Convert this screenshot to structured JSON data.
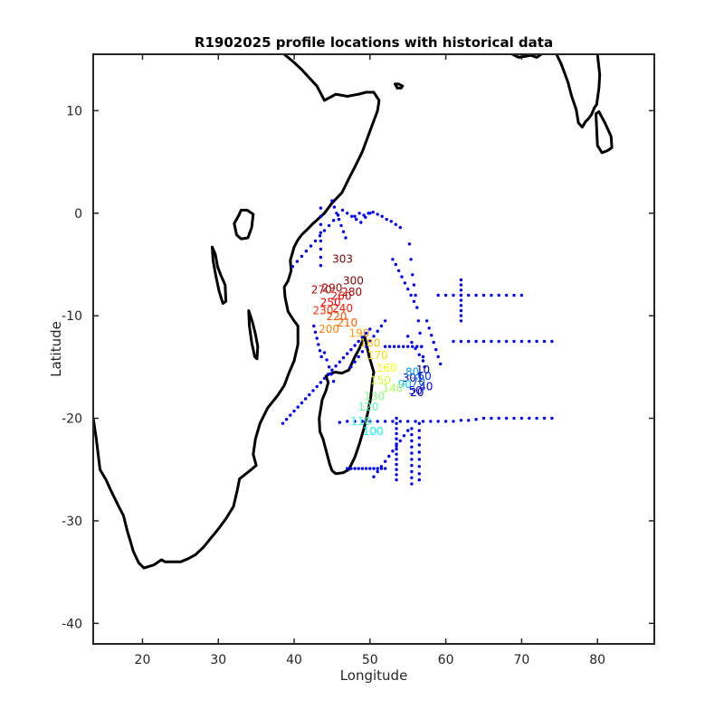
{
  "chart_data": {
    "type": "scatter",
    "title": "R1902025 profile locations with historical data",
    "xlabel": "Longitude",
    "ylabel": "Latitude",
    "xlim": [
      13.5,
      87.5
    ],
    "ylim": [
      -42,
      15.5
    ],
    "xticks": [
      20,
      30,
      40,
      50,
      60,
      70,
      80
    ],
    "yticks": [
      10,
      0,
      -10,
      -20,
      -30,
      -40
    ],
    "grid": false,
    "colormap": [
      "#00008f",
      "#0000ff",
      "#0080ff",
      "#00ffff",
      "#80ff80",
      "#ffff00",
      "#ff8000",
      "#ff0000",
      "#800000"
    ],
    "historical_color": "#0000ff",
    "coastline_color": "#000000",
    "historical_tracks": [
      {
        "x": [
          38.5,
          39.0,
          39.5,
          40.0,
          40.5,
          41.0,
          41.5,
          42.0,
          42.5,
          43.0,
          43.5,
          44.0,
          44.5,
          45.0,
          45.5,
          46.0,
          46.5,
          47.0,
          47.5,
          48.0,
          48.5,
          49.0,
          49.5,
          50.0
        ],
        "y": [
          -20.5,
          -20.1,
          -19.7,
          -19.3,
          -18.9,
          -18.5,
          -18.1,
          -17.7,
          -17.3,
          -16.9,
          -16.5,
          -16.1,
          -15.7,
          -15.3,
          -14.9,
          -14.5,
          -14.1,
          -13.7,
          -13.3,
          -12.9,
          -12.5,
          -12.1,
          -11.7,
          -11.3
        ]
      },
      {
        "x": [
          39.8,
          40.4,
          41.0,
          41.6,
          42.2,
          42.8,
          43.4,
          44.0,
          44.6,
          45.2,
          45.8,
          46.4,
          47.0,
          47.6,
          48.2,
          48.8,
          49.4,
          50.0
        ],
        "y": [
          -5.2,
          -4.7,
          -4.2,
          -3.7,
          -3.2,
          -2.7,
          -2.2,
          -1.7,
          -1.2,
          -0.7,
          -0.2,
          0.3,
          0.0,
          -0.3,
          -0.6,
          -0.9,
          -0.4,
          0.0
        ]
      },
      {
        "x": [
          48.0,
          48.6,
          49.2,
          49.8,
          50.4,
          51.0,
          51.6,
          52.2,
          52.8,
          53.4,
          54.0
        ],
        "y": [
          -0.3,
          0.0,
          -0.2,
          0.0,
          0.1,
          -0.1,
          -0.3,
          -0.6,
          -0.8,
          -1.1,
          -1.4
        ]
      },
      {
        "x": [
          55.2,
          55.4,
          55.6,
          55.8,
          56.0,
          56.2,
          56.4,
          56.6,
          56.8,
          57.0,
          57.2
        ],
        "y": [
          -3.0,
          -4.5,
          -6.0,
          -7.0,
          -8.0,
          -9.2,
          -10.5,
          -11.7,
          -13.0,
          -14.0,
          -15.0
        ]
      },
      {
        "x": [
          53.0,
          53.4,
          53.8,
          54.2,
          54.6,
          55.0,
          55.4,
          55.8
        ],
        "y": [
          -4.5,
          -5.0,
          -5.6,
          -6.2,
          -6.8,
          -7.4,
          -8.0,
          -8.6
        ]
      },
      {
        "x": [
          46.0,
          47.0,
          48.0,
          49.0,
          50.0,
          51.0,
          52.0,
          53.0,
          54.0,
          55.0,
          56.0,
          57.0,
          58.0,
          59.0,
          60.0,
          61.0,
          62.0,
          63.0,
          64.0,
          65.0,
          66.0,
          67.0,
          68.0,
          69.0,
          70.0,
          71.0,
          72.0,
          73.0,
          74.0
        ],
        "y": [
          -20.4,
          -20.3,
          -20.3,
          -20.3,
          -20.3,
          -20.3,
          -20.3,
          -20.3,
          -20.3,
          -20.3,
          -20.3,
          -20.3,
          -20.3,
          -20.3,
          -20.3,
          -20.3,
          -20.2,
          -20.2,
          -20.1,
          -20.0,
          -20.0,
          -20.0,
          -20.0,
          -20.0,
          -20.0,
          -20.0,
          -20.0,
          -20.0,
          -20.0
        ]
      },
      {
        "x": [
          59.0,
          60.0,
          61.0,
          62.0,
          63.0,
          64.0,
          65.0,
          66.0,
          67.0,
          68.0,
          69.0,
          70.0
        ],
        "y": [
          -8.0,
          -8.0,
          -8.0,
          -8.0,
          -8.0,
          -8.0,
          -8.0,
          -8.0,
          -8.0,
          -8.0,
          -8.0,
          -8.0
        ]
      },
      {
        "x": [
          62.0,
          62.0,
          62.0,
          62.0,
          62.0,
          62.0,
          62.0,
          62.0,
          62.0
        ],
        "y": [
          -6.5,
          -7.0,
          -7.5,
          -8.0,
          -8.5,
          -9.0,
          -9.5,
          -10.0,
          -10.5
        ]
      },
      {
        "x": [
          61.0,
          62.0,
          63.0,
          64.0,
          65.0,
          66.0,
          67.0,
          68.0,
          69.0,
          70.0,
          71.0,
          72.0,
          73.0,
          74.0
        ],
        "y": [
          -12.5,
          -12.5,
          -12.5,
          -12.5,
          -12.5,
          -12.5,
          -12.5,
          -12.5,
          -12.5,
          -12.5,
          -12.5,
          -12.5,
          -12.5,
          -12.5
        ]
      },
      {
        "x": [
          57.5,
          57.8,
          58.1,
          58.4,
          58.7,
          59.0,
          59.3
        ],
        "y": [
          -10.5,
          -11.2,
          -11.9,
          -12.6,
          -13.3,
          -14.0,
          -14.7
        ]
      },
      {
        "x": [
          47.0,
          47.5,
          48.0,
          48.5,
          49.0,
          49.5,
          50.0,
          50.5,
          51.0,
          51.5,
          52.0
        ],
        "y": [
          -24.9,
          -24.9,
          -24.9,
          -24.9,
          -24.9,
          -24.9,
          -24.9,
          -24.9,
          -24.9,
          -24.9,
          -24.9
        ]
      },
      {
        "x": [
          53.5,
          53.5,
          53.5,
          53.5,
          53.5,
          53.5,
          53.5,
          53.5,
          53.5,
          53.5,
          53.5,
          53.5,
          53.5
        ],
        "y": [
          -20.0,
          -20.5,
          -21.0,
          -21.5,
          -22.0,
          -22.5,
          -23.0,
          -23.5,
          -24.0,
          -24.5,
          -25.0,
          -25.5,
          -26.0
        ]
      },
      {
        "x": [
          55.5,
          55.5,
          55.5,
          55.5,
          55.5,
          55.5,
          55.5,
          55.5,
          55.5,
          55.5
        ],
        "y": [
          -21.0,
          -21.6,
          -22.2,
          -22.8,
          -23.4,
          -24.0,
          -24.6,
          -25.2,
          -25.8,
          -26.4
        ]
      },
      {
        "x": [
          56.5,
          56.5,
          56.5,
          56.5,
          56.5,
          56.5,
          56.5,
          56.5,
          56.5
        ],
        "y": [
          -20.5,
          -21.2,
          -21.9,
          -22.6,
          -23.3,
          -24.0,
          -24.7,
          -25.4,
          -26.0
        ]
      },
      {
        "x": [
          50.5,
          51.0,
          51.5,
          52.0,
          52.5,
          53.0,
          53.5,
          54.0,
          54.5,
          55.0
        ],
        "y": [
          -25.7,
          -25.2,
          -24.7,
          -24.2,
          -23.7,
          -23.2,
          -22.7,
          -22.2,
          -21.7,
          -21.2
        ]
      },
      {
        "x": [
          52.0,
          52.6,
          53.2,
          53.8,
          54.4,
          55.0,
          55.6,
          56.2,
          56.8
        ],
        "y": [
          -13.0,
          -13.0,
          -13.0,
          -13.0,
          -13.0,
          -13.0,
          -13.0,
          -13.0,
          -13.0
        ]
      },
      {
        "x": [
          55.0,
          55.5,
          56.0,
          56.5,
          57.0
        ],
        "y": [
          -12.0,
          -12.6,
          -13.2,
          -13.8,
          -14.4
        ]
      },
      {
        "x": [
          43.5,
          43.5,
          43.5,
          43.5,
          43.5,
          43.5,
          43.5,
          43.5
        ],
        "y": [
          0.5,
          -0.3,
          -1.1,
          -1.9,
          -2.7,
          -3.5,
          -4.3,
          -5.1
        ]
      },
      {
        "x": [
          45.0,
          45.3,
          45.6,
          45.9,
          46.2,
          46.5,
          46.8
        ],
        "y": [
          1.2,
          0.6,
          0.0,
          -0.6,
          -1.2,
          -1.8,
          -2.4
        ]
      },
      {
        "x": [
          44.0,
          44.3,
          44.6,
          44.9,
          45.2
        ],
        "y": [
          -13.6,
          -14.3,
          -15.0,
          -15.7,
          -16.4
        ]
      },
      {
        "x": [
          42.6,
          42.8,
          43.0,
          43.2,
          43.4,
          43.6
        ],
        "y": [
          -11.0,
          -11.6,
          -12.2,
          -12.8,
          -13.4,
          -14.0
        ]
      },
      {
        "x": [
          47.5,
          48.0,
          48.5,
          49.0,
          49.5,
          50.0,
          50.5,
          51.0,
          51.5,
          52.0
        ],
        "y": [
          -15.0,
          -14.5,
          -14.0,
          -13.5,
          -13.0,
          -12.5,
          -12.0,
          -11.5,
          -11.0,
          -10.5
        ]
      }
    ],
    "profiles": [
      {
        "label": "303",
        "x": 46.4,
        "y": -4.4,
        "v": 1.0
      },
      {
        "label": "300",
        "x": 47.8,
        "y": -6.5,
        "v": 0.99
      },
      {
        "label": "290",
        "x": 45.0,
        "y": -7.2,
        "v": 0.97
      },
      {
        "label": "280",
        "x": 47.6,
        "y": -7.6,
        "v": 0.95
      },
      {
        "label": "270",
        "x": 43.6,
        "y": -7.4,
        "v": 0.93
      },
      {
        "label": "260",
        "x": 46.2,
        "y": -8.0,
        "v": 0.9
      },
      {
        "label": "250",
        "x": 44.8,
        "y": -8.6,
        "v": 0.88
      },
      {
        "label": "240",
        "x": 46.4,
        "y": -9.2,
        "v": 0.85
      },
      {
        "label": "230",
        "x": 43.8,
        "y": -9.4,
        "v": 0.83
      },
      {
        "label": "220",
        "x": 45.6,
        "y": -10.0,
        "v": 0.8
      },
      {
        "label": "210",
        "x": 47.0,
        "y": -10.6,
        "v": 0.78
      },
      {
        "label": "200",
        "x": 44.6,
        "y": -11.2,
        "v": 0.75
      },
      {
        "label": "190",
        "x": 48.6,
        "y": -11.6,
        "v": 0.72
      },
      {
        "label": "180",
        "x": 50.0,
        "y": -12.6,
        "v": 0.69
      },
      {
        "label": "170",
        "x": 51.0,
        "y": -13.8,
        "v": 0.66
      },
      {
        "label": "160",
        "x": 52.2,
        "y": -15.0,
        "v": 0.62
      },
      {
        "label": "150",
        "x": 51.4,
        "y": -16.2,
        "v": 0.58
      },
      {
        "label": "140",
        "x": 53.0,
        "y": -17.0,
        "v": 0.54
      },
      {
        "label": "130",
        "x": 50.6,
        "y": -17.8,
        "v": 0.5
      },
      {
        "label": "120",
        "x": 49.8,
        "y": -18.8,
        "v": 0.46
      },
      {
        "label": "110",
        "x": 48.8,
        "y": -20.2,
        "v": 0.42
      },
      {
        "label": "100",
        "x": 50.4,
        "y": -21.2,
        "v": 0.38
      },
      {
        "label": "90",
        "x": 54.6,
        "y": -16.6,
        "v": 0.32
      },
      {
        "label": "80",
        "x": 55.6,
        "y": -15.4,
        "v": 0.27
      },
      {
        "label": "70",
        "x": 56.4,
        "y": -16.4,
        "v": 0.22
      },
      {
        "label": "60",
        "x": 57.2,
        "y": -15.8,
        "v": 0.17
      },
      {
        "label": "50",
        "x": 56.0,
        "y": -17.2,
        "v": 0.13
      },
      {
        "label": "40",
        "x": 57.4,
        "y": -16.8,
        "v": 0.09
      },
      {
        "label": "30",
        "x": 55.2,
        "y": -16.0,
        "v": 0.05
      },
      {
        "label": "20",
        "x": 56.2,
        "y": -17.4,
        "v": 0.03
      },
      {
        "label": "10",
        "x": 57.0,
        "y": -15.2,
        "v": 0.01
      },
      {
        "label": "1",
        "x": 56.6,
        "y": -16.0,
        "v": 0.0
      }
    ],
    "coastlines": [
      {
        "name": "africa",
        "x": [
          38.7,
          40.0,
          41.0,
          42.0,
          43.0,
          44.0,
          45.5,
          47.0,
          48.5,
          49.5,
          50.5,
          51.2,
          51.0,
          50.0,
          49.0,
          48.0,
          47.3,
          46.3,
          45.0,
          44.0,
          42.5,
          41.7,
          41.0,
          40.5,
          40.0,
          39.5,
          39.6,
          39.2,
          38.7,
          38.8,
          39.2,
          39.9,
          40.5,
          40.5,
          40.0,
          39.3,
          38.7,
          37.8,
          36.5,
          35.5,
          34.9,
          34.6,
          35.0,
          34.0,
          32.8,
          32.5,
          32.0,
          31.0,
          30.0,
          29.0,
          28.0,
          27.0,
          26.0,
          25.0,
          24.0,
          23.0,
          22.5,
          21.5,
          20.2,
          19.5,
          18.8,
          18.4,
          18.0,
          17.5,
          16.8,
          15.8,
          15.2,
          14.4,
          13.9,
          13.5
        ],
        "y": [
          15.5,
          14.7,
          14.0,
          13.2,
          12.4,
          11.0,
          11.6,
          11.4,
          11.6,
          11.8,
          11.8,
          11.0,
          10.0,
          8.0,
          6.0,
          4.5,
          3.5,
          2.0,
          1.0,
          0.0,
          -1.0,
          -1.6,
          -2.1,
          -2.6,
          -3.3,
          -4.6,
          -5.6,
          -6.6,
          -7.2,
          -8.2,
          -9.6,
          -10.4,
          -11.0,
          -12.8,
          -14.4,
          -15.6,
          -16.8,
          -17.8,
          -19.0,
          -20.5,
          -22.0,
          -23.5,
          -24.6,
          -25.2,
          -25.9,
          -27.0,
          -28.6,
          -29.8,
          -30.8,
          -31.7,
          -32.6,
          -33.3,
          -33.7,
          -34.0,
          -34.0,
          -34.0,
          -33.8,
          -34.3,
          -34.6,
          -34.1,
          -33.0,
          -32.0,
          -31.0,
          -29.5,
          -28.5,
          -27.0,
          -26.0,
          -25.0,
          -22.0,
          -20.0
        ]
      },
      {
        "name": "madagascar",
        "x": [
          49.3,
          49.9,
          50.5,
          50.3,
          50.1,
          49.7,
          49.2,
          48.6,
          48.0,
          47.2,
          46.5,
          45.5,
          45.0,
          44.7,
          44.3,
          43.8,
          43.4,
          43.3,
          43.7,
          44.2,
          44.5,
          44.2,
          44.6,
          45.4,
          46.3,
          47.2,
          48.0,
          48.6,
          49.3
        ],
        "y": [
          -12.0,
          -14.0,
          -15.5,
          -16.5,
          -18.0,
          -19.5,
          -21.0,
          -22.5,
          -23.8,
          -25.0,
          -25.3,
          -25.4,
          -25.1,
          -24.5,
          -23.4,
          -22.0,
          -21.3,
          -20.0,
          -18.2,
          -17.3,
          -16.5,
          -15.9,
          -15.7,
          -15.5,
          -15.6,
          -15.3,
          -14.0,
          -13.2,
          -12.0
        ]
      },
      {
        "name": "lake-victoria",
        "x": [
          33.0,
          33.8,
          34.6,
          34.4,
          33.9,
          33.0,
          32.4,
          32.1,
          32.7,
          33.0
        ],
        "y": [
          0.3,
          0.3,
          -0.1,
          -1.4,
          -2.4,
          -2.5,
          -2.1,
          -1.0,
          -0.2,
          0.3
        ]
      },
      {
        "name": "lake-tanganyika",
        "x": [
          29.2,
          29.6,
          29.9,
          30.3,
          30.9,
          31.0,
          30.6,
          30.1,
          29.7,
          29.3,
          29.2
        ],
        "y": [
          -3.3,
          -4.0,
          -5.2,
          -6.0,
          -7.0,
          -8.6,
          -8.8,
          -7.6,
          -6.2,
          -4.6,
          -3.3
        ]
      },
      {
        "name": "lake-malawi",
        "x": [
          34.0,
          34.5,
          34.9,
          35.2,
          35.1,
          34.8,
          34.4,
          34.1,
          34.0
        ],
        "y": [
          -9.5,
          -10.6,
          -11.8,
          -13.0,
          -14.2,
          -14.0,
          -12.6,
          -11.0,
          -9.5
        ]
      },
      {
        "name": "socotra",
        "x": [
          53.3,
          53.8,
          54.3,
          54.1,
          53.6,
          53.3
        ],
        "y": [
          12.6,
          12.6,
          12.4,
          12.2,
          12.2,
          12.6
        ]
      },
      {
        "name": "india",
        "x": [
          68.8,
          69.6,
          70.5,
          71.2,
          72.0,
          72.6,
          73.0,
          73.4,
          74.0,
          74.6,
          75.2,
          75.6,
          76.1,
          76.6,
          77.2,
          77.5,
          78.0,
          78.4,
          78.8,
          79.2,
          79.6,
          79.9,
          80.2,
          80.3,
          80.0
        ],
        "y": [
          15.5,
          15.2,
          15.3,
          15.4,
          15.2,
          15.5,
          15.9,
          16.4,
          16.4,
          15.5,
          14.6,
          13.8,
          12.8,
          11.4,
          10.1,
          8.8,
          8.4,
          8.9,
          9.2,
          9.6,
          10.3,
          10.6,
          12.2,
          13.5,
          15.5
        ]
      },
      {
        "name": "sri-lanka",
        "x": [
          79.8,
          80.2,
          81.0,
          81.8,
          81.9,
          81.3,
          80.6,
          80.0,
          79.8
        ],
        "y": [
          9.7,
          9.9,
          8.8,
          7.5,
          6.4,
          6.1,
          5.9,
          6.6,
          9.7
        ]
      }
    ]
  }
}
